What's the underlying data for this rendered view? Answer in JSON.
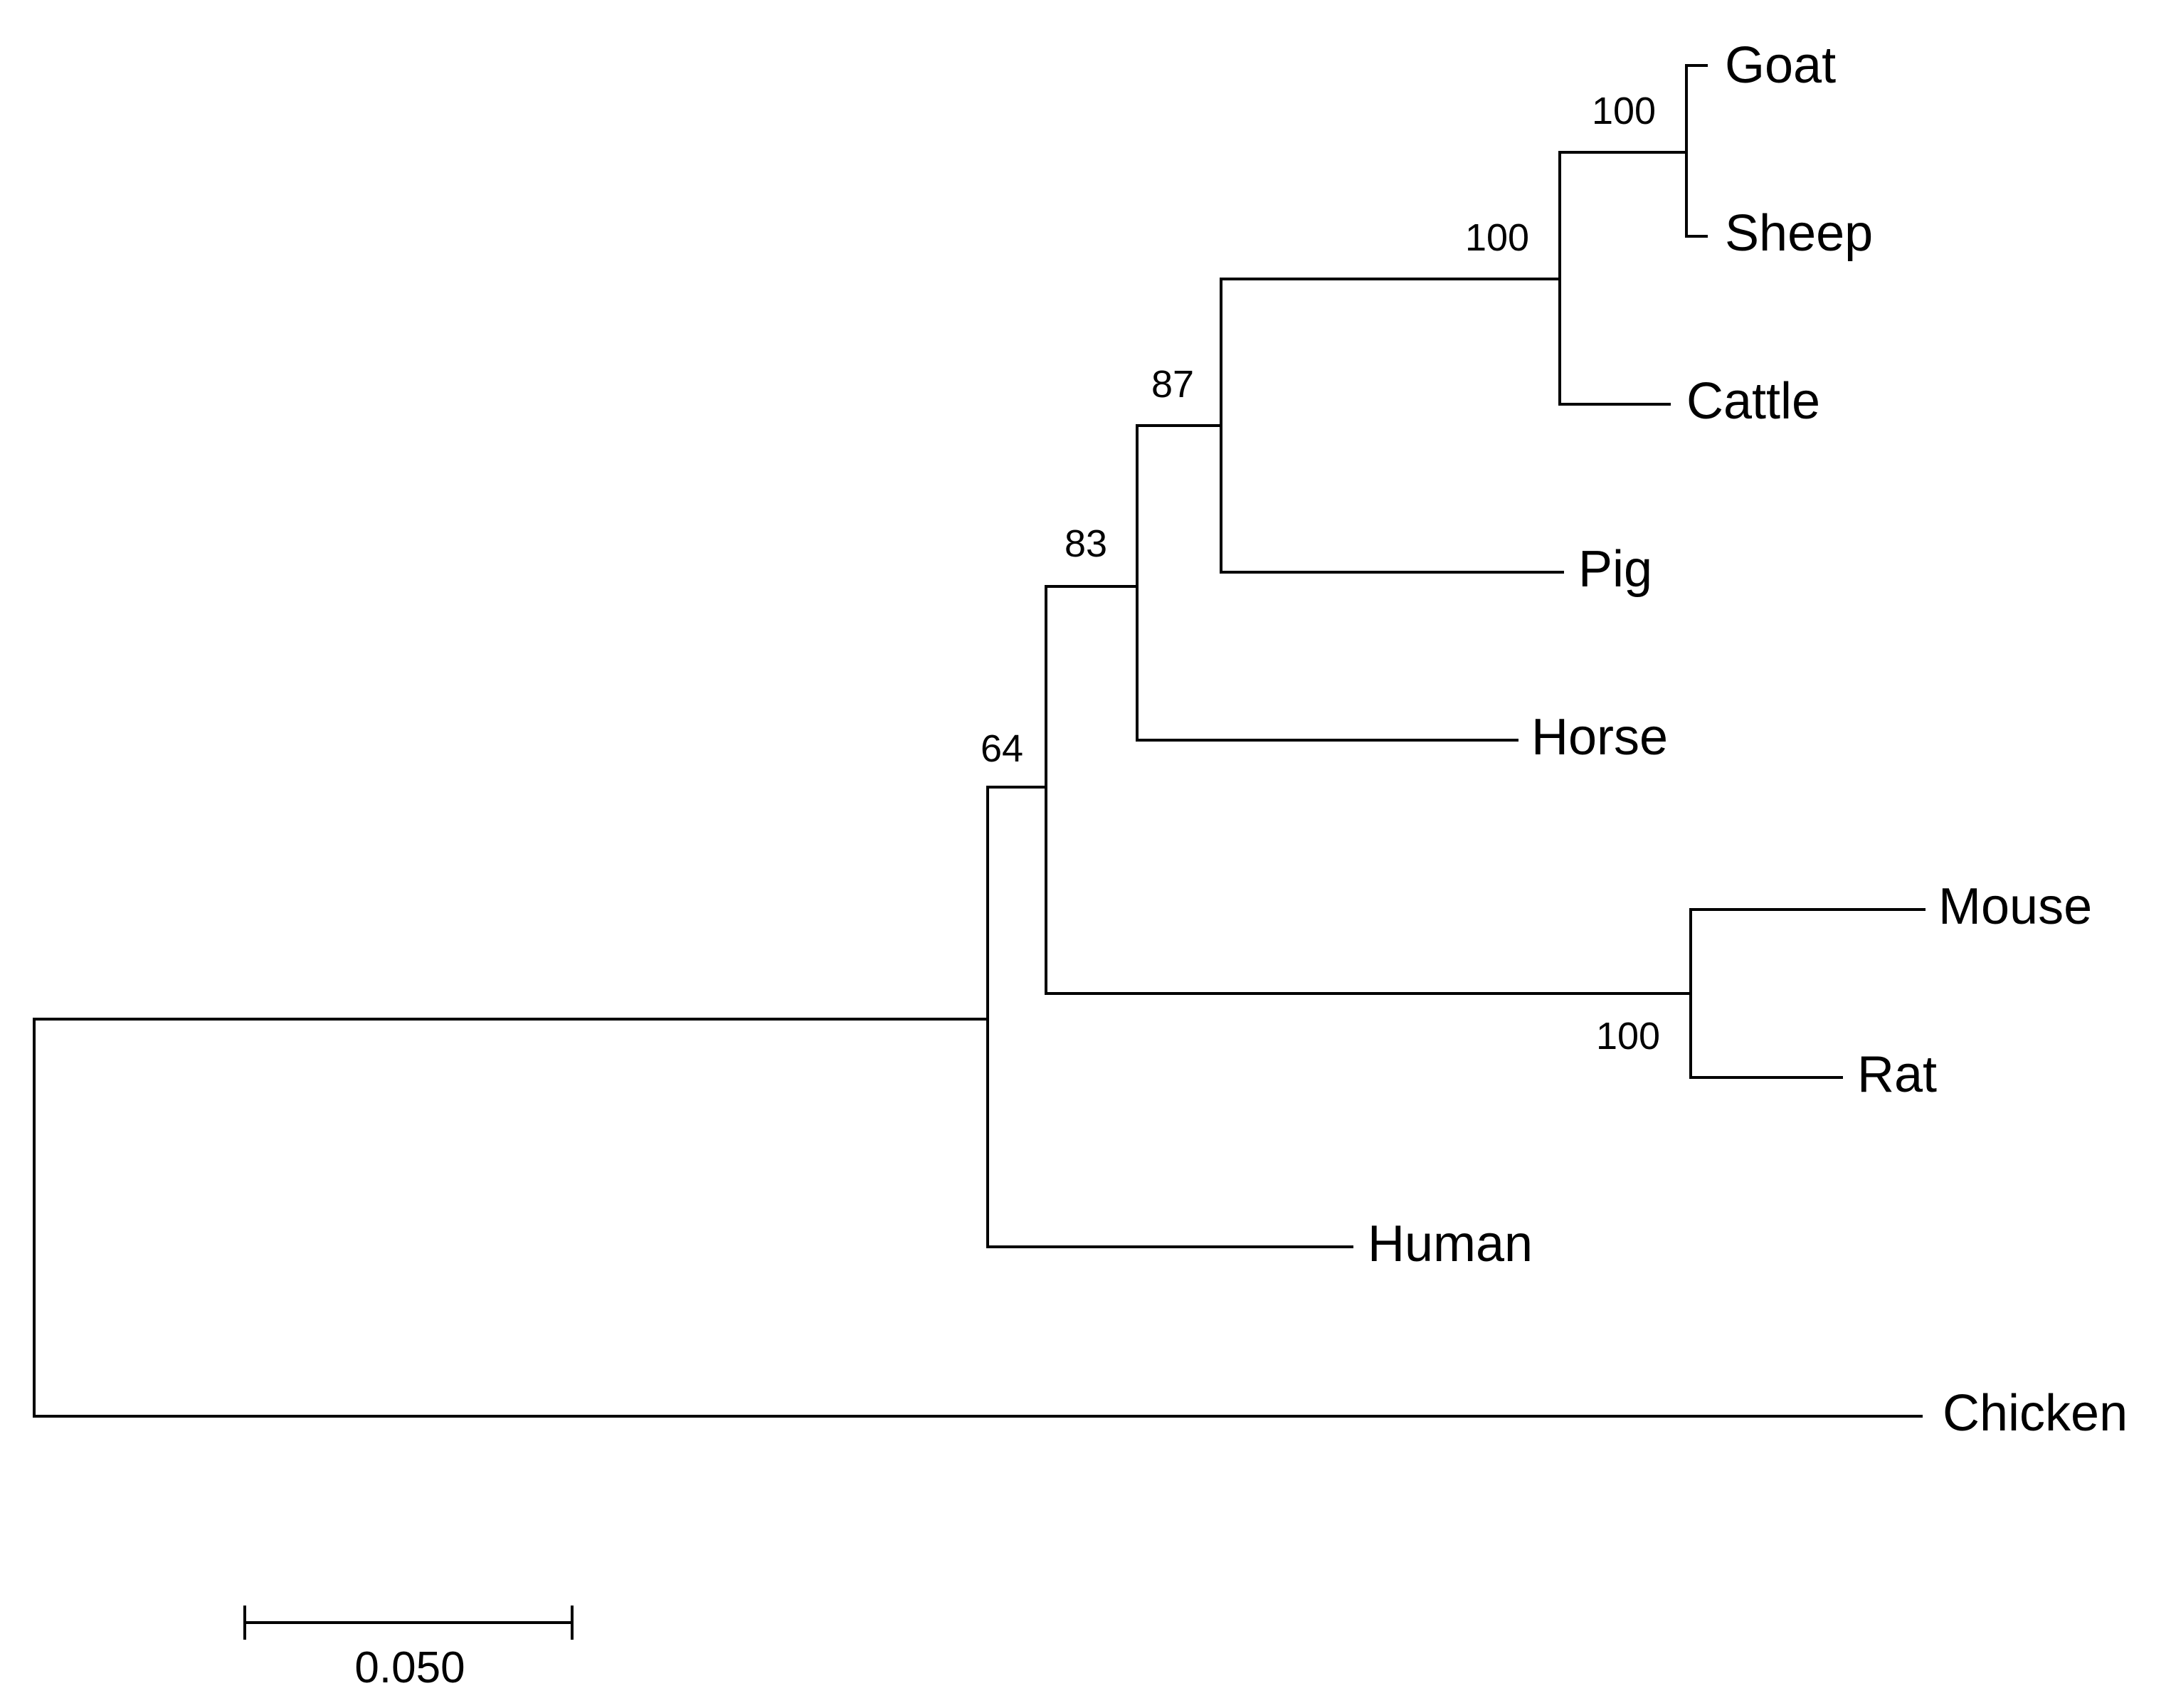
{
  "tree": {
    "taxa": [
      {
        "key": "goat",
        "label": "Goat"
      },
      {
        "key": "sheep",
        "label": "Sheep"
      },
      {
        "key": "cattle",
        "label": "Cattle"
      },
      {
        "key": "pig",
        "label": "Pig"
      },
      {
        "key": "horse",
        "label": "Horse"
      },
      {
        "key": "mouse",
        "label": "Mouse"
      },
      {
        "key": "rat",
        "label": "Rat"
      },
      {
        "key": "human",
        "label": "Human"
      },
      {
        "key": "chicken",
        "label": "Chicken"
      }
    ],
    "support_values": [
      {
        "clade": "goat-sheep",
        "value": "100"
      },
      {
        "clade": "goat-sheep-cattle",
        "value": "100"
      },
      {
        "clade": "ruminants-pig",
        "value": "87"
      },
      {
        "clade": "ruminants-pig-horse",
        "value": "83"
      },
      {
        "clade": "mouse-rat",
        "value": "100"
      },
      {
        "clade": "mammals-minus-human",
        "value": "64"
      }
    ],
    "scale_bar": {
      "label": "0.050",
      "length": 0.05
    },
    "line_color": "#000000",
    "background_color": "#ffffff"
  }
}
